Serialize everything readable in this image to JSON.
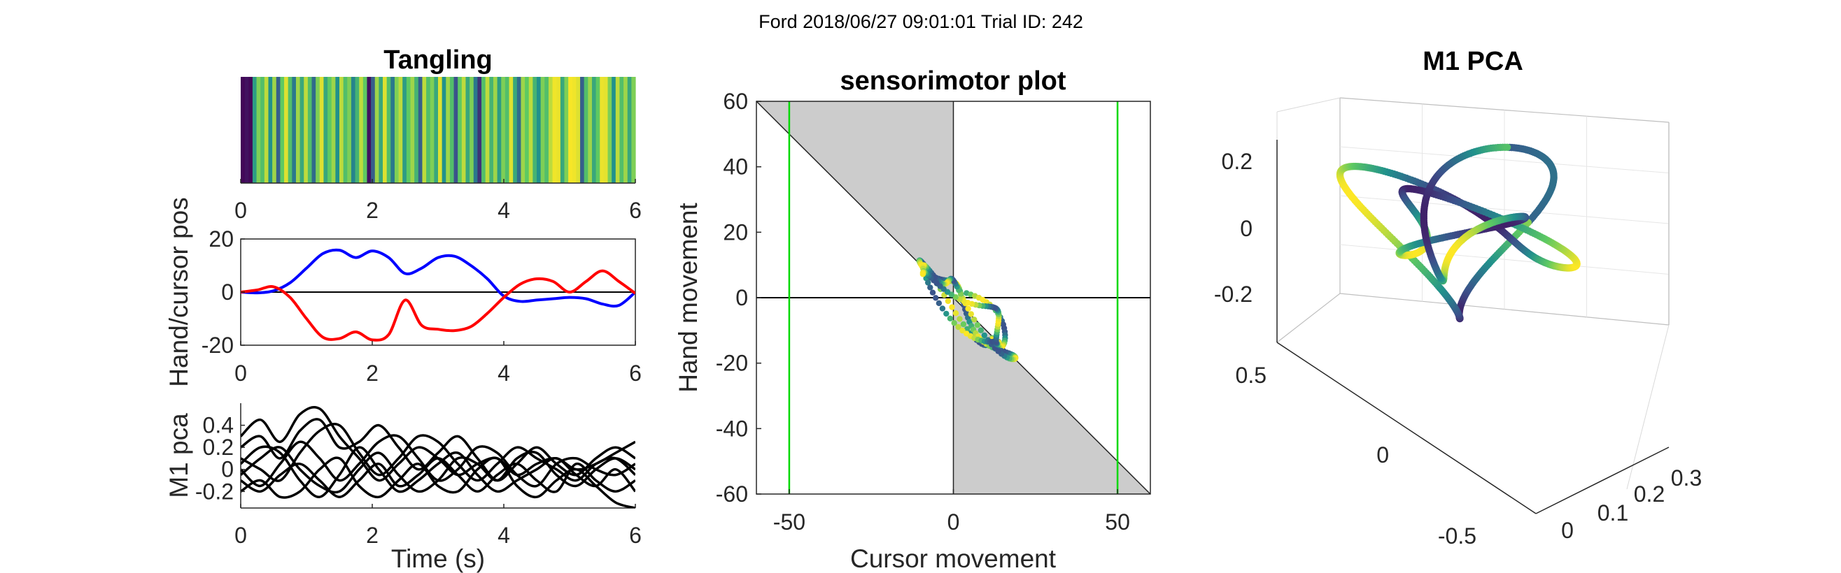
{
  "figure": {
    "suptitle": "Ford 2018/06/27 09:01:01 Trial ID: 242"
  },
  "colors": {
    "hand": "#0000ff",
    "cursor": "#ff0000",
    "bound": "#00d900",
    "shade": "#cccccc",
    "trace": "#000000"
  },
  "chart_data": [
    {
      "type": "heatmap",
      "title": "Tangling",
      "xlim": [
        0,
        6
      ],
      "xticks": [
        0,
        2,
        4,
        6
      ],
      "colormap": "viridis",
      "values": [
        0.02,
        0.05,
        0.02,
        0.55,
        0.8,
        0.7,
        0.9,
        0.5,
        0.85,
        0.3,
        0.75,
        0.95,
        0.7,
        0.4,
        0.85,
        0.6,
        0.9,
        0.7,
        0.35,
        0.8,
        0.95,
        0.6,
        0.75,
        0.85,
        0.5,
        0.9,
        0.7,
        0.8,
        0.45,
        0.65,
        0.9,
        0.75,
        0.05,
        0.3,
        0.85,
        0.6,
        0.95,
        0.7,
        0.4,
        0.8,
        0.9,
        0.55,
        0.75,
        0.85,
        0.65,
        0.3,
        0.9,
        0.7,
        0.8,
        0.6,
        0.95,
        0.5,
        0.85,
        0.7,
        0.25,
        0.75,
        0.9,
        0.6,
        0.8,
        0.4,
        0.15,
        0.7,
        0.9,
        0.65,
        0.85,
        0.55,
        0.8,
        0.7,
        0.95,
        0.6,
        0.35,
        0.85,
        0.75,
        0.9,
        0.65,
        0.5,
        0.8,
        0.7,
        0.9,
        0.98,
        0.97,
        0.6,
        0.8,
        0.99,
        0.98,
        0.95,
        0.3,
        0.7,
        0.85,
        0.6,
        0.75,
        0.97,
        0.96,
        0.8,
        0.5,
        0.9,
        0.7,
        0.85,
        0.6,
        0.8
      ]
    },
    {
      "type": "line",
      "ylabel": "Hand/cursor pos",
      "xlim": [
        0,
        6
      ],
      "ylim": [
        -20,
        20
      ],
      "xticks": [
        0,
        2,
        4,
        6
      ],
      "yticks": [
        -20,
        0,
        20
      ],
      "x": [
        0,
        0.25,
        0.5,
        0.75,
        1,
        1.25,
        1.5,
        1.75,
        2,
        2.25,
        2.5,
        2.75,
        3,
        3.25,
        3.5,
        3.75,
        4,
        4.25,
        4.5,
        4.75,
        5,
        5.25,
        5.5,
        5.75,
        6
      ],
      "series": [
        {
          "name": "hand",
          "values": [
            0,
            -0.3,
            0.5,
            3.5,
            9,
            14.5,
            15.8,
            13,
            15.5,
            13,
            7,
            9,
            13,
            13.5,
            10,
            5,
            -1.5,
            -3.5,
            -3,
            -2.5,
            -2,
            -2.5,
            -4.5,
            -5,
            0
          ]
        },
        {
          "name": "cursor",
          "values": [
            0,
            0.8,
            2,
            -2,
            -10,
            -17,
            -17.5,
            -15,
            -18,
            -16,
            -3,
            -12.5,
            -14,
            -14.5,
            -13,
            -8,
            -2,
            3,
            5,
            4,
            0,
            4,
            8,
            4,
            -0.5
          ]
        }
      ]
    },
    {
      "type": "line",
      "ylabel": "M1 pca",
      "xlabel": "Time (s)",
      "xlim": [
        0,
        6
      ],
      "ylim": [
        -0.35,
        0.6
      ],
      "xticks": [
        0,
        2,
        4,
        6
      ],
      "yticks": [
        -0.2,
        0,
        0.2,
        0.4
      ],
      "x": [
        0,
        0.3,
        0.6,
        0.9,
        1.2,
        1.5,
        1.8,
        2.1,
        2.4,
        2.7,
        3,
        3.3,
        3.6,
        3.9,
        4.2,
        4.5,
        4.8,
        5.1,
        5.4,
        5.7,
        6
      ],
      "series": [
        {
          "values": [
            0.3,
            0.45,
            0.25,
            0.5,
            0.55,
            0.3,
            0.1,
            -0.1,
            0.05,
            0.2,
            0.1,
            -0.05,
            0.05,
            0.1,
            -0.05,
            0.05,
            0.1,
            0,
            0.05,
            0.15,
            0.25
          ]
        },
        {
          "values": [
            0.2,
            0.3,
            0.1,
            0.35,
            0.45,
            0.2,
            0.25,
            0.4,
            0.2,
            0,
            0.15,
            0.3,
            0.1,
            -0.1,
            0.05,
            0.2,
            0.05,
            -0.05,
            0.1,
            0.2,
            0.1
          ]
        },
        {
          "values": [
            0.1,
            0.0,
            -0.1,
            0.15,
            0.35,
            0.4,
            0.15,
            -0.05,
            0.1,
            0.3,
            0.25,
            0.05,
            -0.1,
            0.05,
            0.2,
            0.1,
            0,
            -0.1,
            0.05,
            0.1,
            -0.05
          ]
        },
        {
          "values": [
            0,
            -0.15,
            0.05,
            0.25,
            0.1,
            -0.1,
            0.05,
            0.25,
            0.3,
            0.1,
            -0.1,
            0,
            0.2,
            0.15,
            -0.05,
            -0.15,
            0.05,
            0.1,
            0,
            -0.05,
            0.05
          ]
        },
        {
          "values": [
            -0.05,
            0.1,
            0.2,
            0,
            -0.15,
            -0.2,
            0,
            0.15,
            -0.05,
            -0.2,
            -0.1,
            0.1,
            0.05,
            -0.1,
            0.1,
            0.15,
            -0.05,
            -0.15,
            0,
            0.1,
            0
          ]
        },
        {
          "values": [
            -0.1,
            -0.2,
            -0.05,
            0.05,
            -0.1,
            -0.25,
            -0.1,
            0.05,
            -0.15,
            -0.05,
            0.1,
            -0.05,
            -0.2,
            -0.05,
            0.05,
            -0.1,
            -0.2,
            0.05,
            -0.1,
            -0.2,
            -0.1
          ]
        },
        {
          "values": [
            0.05,
            0.2,
            0.15,
            -0.1,
            -0.25,
            -0.05,
            0.2,
            0,
            -0.2,
            -0.1,
            0.05,
            0.15,
            -0.05,
            -0.2,
            -0.1,
            0,
            0.1,
            -0.05,
            -0.15,
            0,
            -0.2
          ]
        },
        {
          "values": [
            -0.2,
            -0.1,
            -0.25,
            -0.2,
            0,
            0.1,
            -0.15,
            -0.25,
            -0.1,
            0.05,
            -0.15,
            -0.2,
            0,
            0.1,
            -0.15,
            -0.25,
            -0.1,
            0,
            -0.15,
            -0.3,
            -0.35
          ]
        }
      ]
    },
    {
      "type": "scatter",
      "title": "sensorimotor plot",
      "xlabel": "Cursor movement",
      "ylabel": "Hand movement",
      "xlim": [
        -60,
        60
      ],
      "ylim": [
        -60,
        60
      ],
      "xticks": [
        -50,
        0,
        50
      ],
      "yticks": [
        -60,
        -40,
        -20,
        0,
        20,
        40,
        60
      ],
      "vlines": [
        -50,
        50
      ],
      "diagonal": "y = -x",
      "loop_center": [
        4,
        -4
      ],
      "loop_extent": [
        12,
        9
      ]
    },
    {
      "type": "scatter",
      "title": "M1 PCA",
      "ztick_labels": [
        "-0.2",
        "0",
        "0.2"
      ],
      "xtick_labels": [
        "-0.5",
        "0",
        "0.5"
      ],
      "ytick_labels": [
        "0",
        "0.1",
        "0.2",
        "0.3"
      ],
      "colormap": "viridis"
    }
  ]
}
